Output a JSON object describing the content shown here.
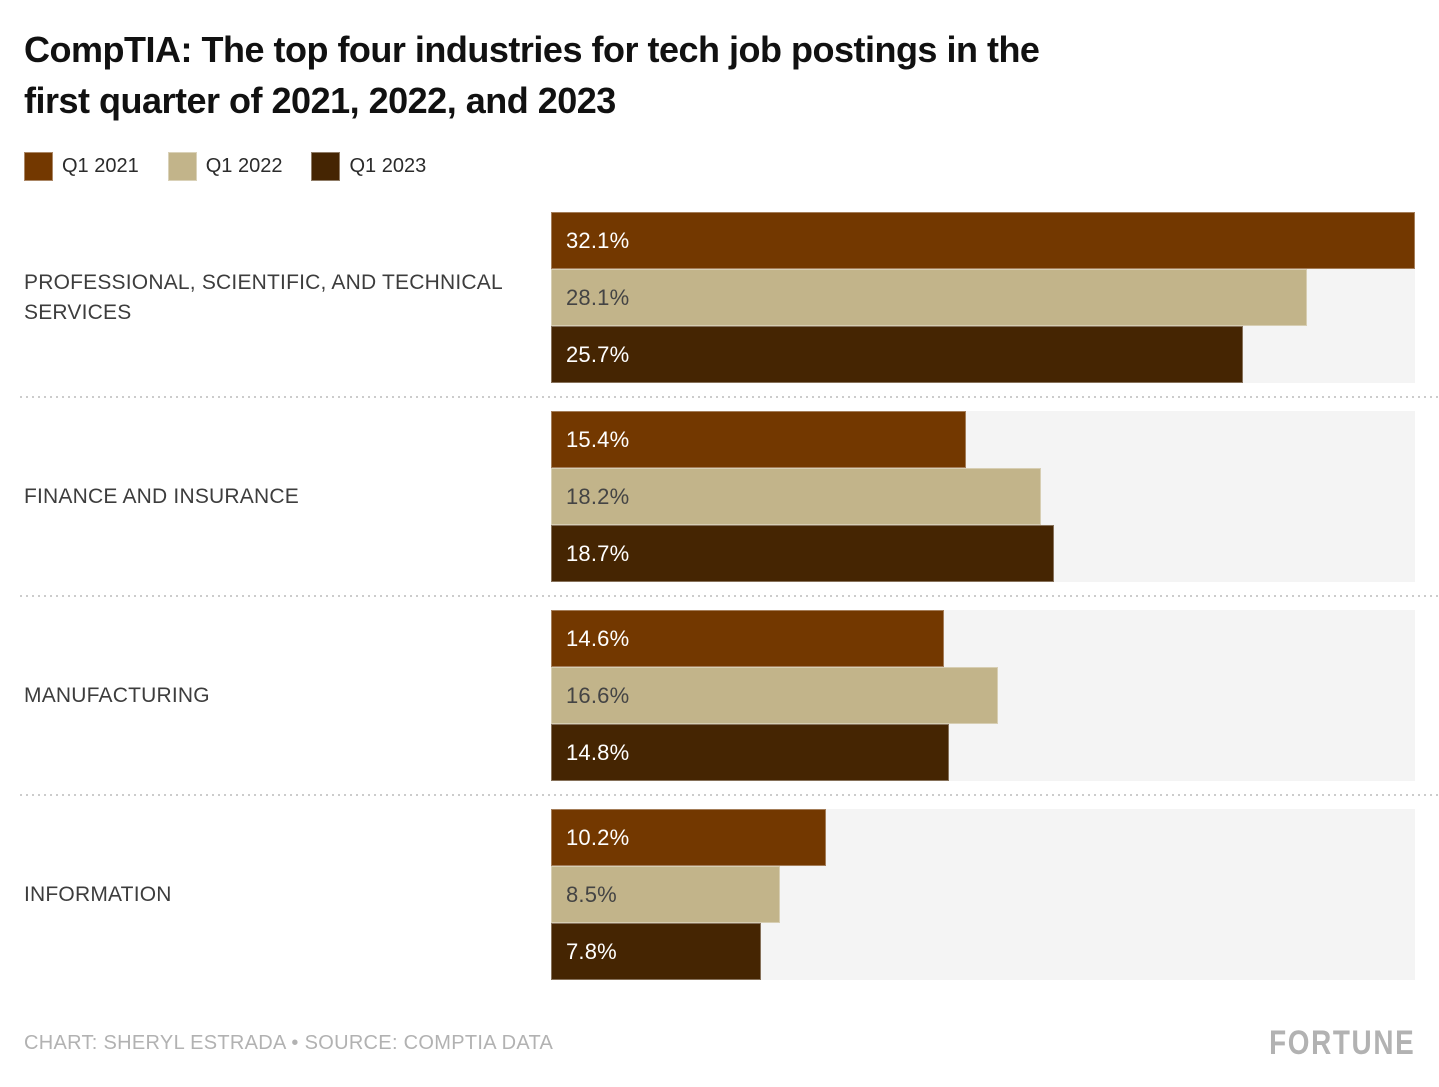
{
  "title": "CompTIA: The top four industries for tech job postings in the\nfirst quarter of 2021, 2022, and 2023",
  "legend": [
    {
      "label": "Q1 2021",
      "color": "#733800"
    },
    {
      "label": "Q1 2022",
      "color": "#c2b48a"
    },
    {
      "label": "Q1 2023",
      "color": "#452502"
    }
  ],
  "chart_data": {
    "type": "bar",
    "orientation": "horizontal",
    "title": "CompTIA: The top four industries for tech job postings in the first quarter of 2021, 2022, and 2023",
    "categories": [
      "PROFESSIONAL, SCIENTIFIC, AND TECHNICAL SERVICES",
      "FINANCE AND INSURANCE",
      "MANUFACTURING",
      "INFORMATION"
    ],
    "series": [
      {
        "name": "Q1 2021",
        "color": "#733800",
        "label_color": "#ffffff",
        "values": [
          32.1,
          15.4,
          14.6,
          10.2
        ]
      },
      {
        "name": "Q1 2022",
        "color": "#c2b48a",
        "label_color": "#444444",
        "values": [
          28.1,
          18.2,
          16.6,
          8.5
        ]
      },
      {
        "name": "Q1 2023",
        "color": "#452502",
        "label_color": "#ffffff",
        "values": [
          25.7,
          18.7,
          14.8,
          7.8
        ]
      }
    ],
    "value_suffix": "%",
    "xlim": [
      0,
      32.1
    ],
    "grid": false,
    "legend_position": "top-left",
    "plot_background": "#f4f4f4",
    "value_labels": "inside-start"
  },
  "footer": {
    "credit": "CHART: SHERYL ESTRADA • SOURCE: COMPTIA DATA",
    "brand": "FORTUNE"
  }
}
